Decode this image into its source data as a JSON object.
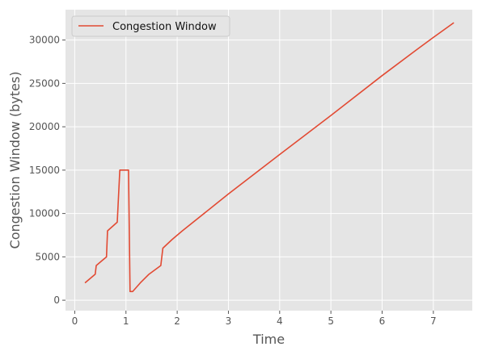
{
  "chart_data": {
    "type": "line",
    "title": "",
    "xlabel": "Time",
    "ylabel": "Congestion Window (bytes)",
    "xlim": [
      -0.18,
      7.76
    ],
    "ylim": [
      -1200,
      33500
    ],
    "x_ticks": [
      0,
      1,
      2,
      3,
      4,
      5,
      6,
      7
    ],
    "y_ticks": [
      0,
      5000,
      10000,
      15000,
      20000,
      25000,
      30000
    ],
    "grid": true,
    "legend_position": "top-left",
    "colors": {
      "plot_background": "#e5e5e5",
      "grid": "#ffffff",
      "line": "#e24a33",
      "tick_text": "#555555",
      "legend_background": "#e5e5e5",
      "legend_border": "#cccccc"
    },
    "series": [
      {
        "name": "Congestion Window",
        "x": [
          0.2,
          0.4,
          0.42,
          0.62,
          0.64,
          0.83,
          0.88,
          1.05,
          1.08,
          1.13,
          1.28,
          1.45,
          1.68,
          1.72,
          1.9,
          2.1,
          3.0,
          4.0,
          5.0,
          6.0,
          6.7,
          7.0,
          7.4
        ],
        "y": [
          2000,
          3000,
          4000,
          5000,
          8000,
          9000,
          15000,
          15000,
          1000,
          1000,
          2000,
          3000,
          4000,
          6000,
          7000,
          8000,
          12250,
          16800,
          21300,
          25900,
          29000,
          30300,
          32000
        ]
      }
    ]
  }
}
